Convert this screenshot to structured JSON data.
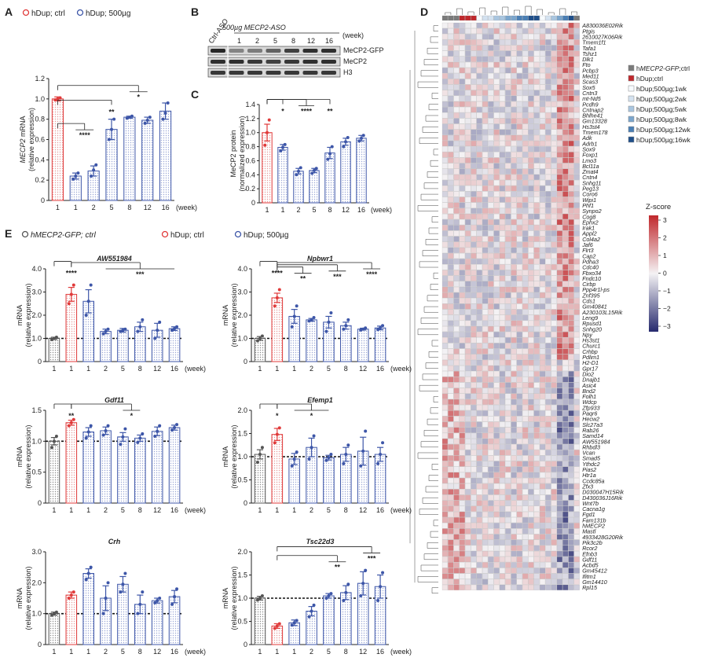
{
  "colors": {
    "ctrl": "#e03a3a",
    "aso": "#3d56a8",
    "gfp": "#555555",
    "heatLow": "#262a6e",
    "heatMid": "#f4f2f4",
    "heatHigh": "#c0282c"
  },
  "legendA": {
    "ctrl": "hDup; ctrl",
    "aso": "hDup; 500µg"
  },
  "legendE": {
    "gfp": "hMECP2-GFP; ctrl",
    "ctrl": "hDup; ctrl",
    "aso": "hDup; 500µg"
  },
  "panelLabels": {
    "A": "A",
    "B": "B",
    "C": "C",
    "D": "D",
    "E": "E"
  },
  "blot": {
    "lanes": [
      "Ctrl-ASO",
      "1",
      "2",
      "5",
      "8",
      "12",
      "16"
    ],
    "header": "500µg MECP2-ASO",
    "weekUnit": "(week)",
    "bands": [
      "MeCP2-GFP",
      "MeCP2",
      "H3"
    ]
  },
  "heatmap": {
    "legend": [
      "hMECP2-GFP;ctrl",
      "hDup;ctrl",
      "hDup;500µg;1wk",
      "hDup;500µg;2wk",
      "hDup;500µg;5wk",
      "hDup;500µg;8wk",
      "hDup;500µg;12wk",
      "hDup;500µg;16wk"
    ],
    "legendColors": [
      "#7a7a7a",
      "#c0282c",
      "#f7fbff",
      "#d4e2f0",
      "#a9c6e0",
      "#7ba6cd",
      "#4a7fb5",
      "#1f4f8a"
    ],
    "zscore": {
      "title": "Z-score",
      "ticks": [
        "3",
        "2",
        "1",
        "0",
        "−1",
        "−2",
        "−3"
      ]
    },
    "genes": [
      "A830036E02Rik",
      "Ptgis",
      "2610027K06Rik",
      "Tmem1f1",
      "Tafa1",
      "Tshz1",
      "Dlk1",
      "Fto",
      "Pcbp3",
      "Med11",
      "Scas3",
      "Sox5",
      "Cntn3",
      "mt-Nd5",
      "Pcdh9",
      "Cntnap2",
      "Bhlhe41",
      "Gm13328",
      "Hs3st4",
      "Tmem178",
      "Adk",
      "Adrb1",
      "Sox9",
      "Foxp1",
      "Lmo3",
      "Bcl11a",
      "Zmat4",
      "Cntn4",
      "Snhg11",
      "Peg13",
      "Coro6",
      "Wipi1",
      "Phf1",
      "Synpo2",
      "Cog8",
      "Ephx2",
      "Irak1",
      "Appl2",
      "Col4a2",
      "Jaf6",
      "Flrt3",
      "Cap2",
      "Pdha3",
      "Cdc40",
      "Fbxo34",
      "Fndc10",
      "Cirbp",
      "Ppp4r1l-ps",
      "Znf395",
      "Cds1",
      "Gm40841",
      "A230103L15Rik",
      "Leng9",
      "Rpusd1",
      "Snhg20",
      "Npy",
      "Hs3st1",
      "Churc1",
      "Crhbp",
      "Pdlim1",
      "H2-D1",
      "Gpr17",
      "Dio2",
      "Dnajb1",
      "Asic4",
      "Bnd2",
      "Folh1",
      "Wdcp",
      "Zfp933",
      "Paqr6",
      "Hecw2",
      "Slc27a3",
      "Rab26",
      "Samd14",
      "AW551984",
      "Rhbdl3",
      "Vcan",
      "Smad5",
      "Ythdc2",
      "Pias2",
      "Htr1a",
      "Ccdc85a",
      "Zfx3",
      "D030047H15Rik",
      "D430036J16Rik",
      "Wnt7b",
      "Cacna1g",
      "Fgd1",
      "Fam131b",
      "hMECP2",
      "Mastl",
      "4933428G20Rik",
      "Pik3c2b",
      "Rcor2",
      "Efnb3",
      "Gdf11",
      "Acbd5",
      "Gm45412",
      "Ifitm1",
      "Gm14410",
      "Rpl15"
    ]
  },
  "chart_data": [
    {
      "id": "A",
      "type": "bar",
      "ylabelGene": "MECP2",
      "ylabel": "mRNA (relative expression)",
      "ylim": [
        0,
        1.2
      ],
      "yticks": [
        0,
        0.2,
        0.4,
        0.6,
        0.8,
        1.0,
        1.2
      ],
      "categories": [
        "1",
        "1",
        "2",
        "5",
        "8",
        "12",
        "16"
      ],
      "xunit": "(week)",
      "groups": [
        "ctrl",
        "aso",
        "aso",
        "aso",
        "aso",
        "aso",
        "aso"
      ],
      "values": [
        1.0,
        0.24,
        0.29,
        0.7,
        0.82,
        0.79,
        0.88
      ],
      "errors": [
        0.02,
        0.03,
        0.05,
        0.1,
        0.01,
        0.03,
        0.08
      ],
      "points": [
        [
          0.99,
          1.0,
          1.01
        ],
        [
          0.21,
          0.24,
          0.27
        ],
        [
          0.24,
          0.3,
          0.35
        ],
        [
          0.6,
          0.7,
          0.8
        ],
        [
          0.81,
          0.82,
          0.83
        ],
        [
          0.76,
          0.79,
          0.82
        ],
        [
          0.8,
          0.86,
          0.96
        ]
      ],
      "sig": [
        "****",
        "**",
        "*"
      ]
    },
    {
      "id": "C",
      "type": "bar",
      "ylabel": "MeCP2 protein (normalized expression)",
      "ylim": [
        0,
        1.4
      ],
      "yticks": [
        0,
        0.2,
        0.4,
        0.6,
        0.8,
        1.0,
        1.2,
        1.4
      ],
      "categories": [
        "1",
        "1",
        "2",
        "5",
        "8",
        "12",
        "16"
      ],
      "xunit": "(week)",
      "groups": [
        "ctrl",
        "aso",
        "aso",
        "aso",
        "aso",
        "aso",
        "aso"
      ],
      "values": [
        1.0,
        0.79,
        0.45,
        0.46,
        0.71,
        0.87,
        0.92
      ],
      "errors": [
        0.12,
        0.04,
        0.04,
        0.03,
        0.08,
        0.05,
        0.04
      ],
      "points": [
        [
          0.82,
          1.0,
          1.18
        ],
        [
          0.74,
          0.79,
          0.83
        ],
        [
          0.4,
          0.45,
          0.5
        ],
        [
          0.42,
          0.46,
          0.49
        ],
        [
          0.62,
          0.7,
          0.8
        ],
        [
          0.8,
          0.87,
          0.93
        ],
        [
          0.88,
          0.92,
          0.96
        ]
      ],
      "sig": [
        "*",
        "****",
        "**"
      ]
    },
    {
      "id": "E1",
      "type": "bar",
      "title": "AW551984",
      "ylabel": "mRNA (relative expression)",
      "ylim": [
        0,
        4
      ],
      "yticks": [
        "0",
        "1.0",
        "2.0",
        "3.0",
        "4.0"
      ],
      "ytickvals": [
        0,
        1,
        2,
        3,
        4
      ],
      "categories": [
        "1",
        "1",
        "1",
        "2",
        "5",
        "8",
        "12",
        "16"
      ],
      "xunit": "(week)",
      "groups": [
        "gfp",
        "ctrl",
        "aso",
        "aso",
        "aso",
        "aso",
        "aso",
        "aso"
      ],
      "values": [
        1.0,
        2.9,
        2.6,
        1.3,
        1.35,
        1.5,
        1.35,
        1.42
      ],
      "errors": [
        0.05,
        0.3,
        0.5,
        0.1,
        0.08,
        0.2,
        0.3,
        0.08
      ],
      "points": [
        [
          0.95,
          1.0,
          1.05
        ],
        [
          2.5,
          2.9,
          3.3
        ],
        [
          2.0,
          2.6,
          3.3
        ],
        [
          1.2,
          1.3,
          1.4
        ],
        [
          1.3,
          1.35,
          1.4
        ],
        [
          1.3,
          1.5,
          1.8
        ],
        [
          1.0,
          1.35,
          1.7
        ],
        [
          1.35,
          1.42,
          1.5
        ]
      ],
      "baseline": 1,
      "sig": [
        "****",
        "***"
      ]
    },
    {
      "id": "E2",
      "type": "bar",
      "title": "Npbwr1",
      "ylabel": "mRNA (relative expression)",
      "ylim": [
        0,
        4
      ],
      "yticks": [
        "0",
        "1.0",
        "2.0",
        "3.0",
        "4.0"
      ],
      "ytickvals": [
        0,
        1,
        2,
        3,
        4
      ],
      "categories": [
        "1",
        "1",
        "1",
        "2",
        "5",
        "8",
        "12",
        "16"
      ],
      "xunit": "(week)",
      "groups": [
        "gfp",
        "ctrl",
        "aso",
        "aso",
        "aso",
        "aso",
        "aso",
        "aso"
      ],
      "values": [
        1.0,
        2.75,
        1.95,
        1.8,
        1.7,
        1.55,
        1.4,
        1.45
      ],
      "errors": [
        0.08,
        0.2,
        0.3,
        0.06,
        0.25,
        0.15,
        0.04,
        0.08
      ],
      "points": [
        [
          0.9,
          1.0,
          1.1
        ],
        [
          2.4,
          2.75,
          3.1
        ],
        [
          1.5,
          1.95,
          2.4
        ],
        [
          1.75,
          1.8,
          1.9
        ],
        [
          1.3,
          1.7,
          2.1
        ],
        [
          1.4,
          1.55,
          1.8
        ],
        [
          1.36,
          1.4,
          1.45
        ],
        [
          1.38,
          1.45,
          1.55
        ]
      ],
      "baseline": 1,
      "sig": [
        "****",
        "**",
        "***",
        "****"
      ]
    },
    {
      "id": "E3",
      "type": "bar",
      "title": "Gdf11",
      "ylabel": "mRNA (relative expression)",
      "ylim": [
        0,
        1.5
      ],
      "yticks": [
        "0",
        "0.5",
        "1.0",
        "1.5"
      ],
      "ytickvals": [
        0,
        0.5,
        1.0,
        1.5
      ],
      "categories": [
        "1",
        "1",
        "1",
        "2",
        "5",
        "8",
        "12",
        "16"
      ],
      "xunit": "(week)",
      "groups": [
        "gfp",
        "ctrl",
        "aso",
        "aso",
        "aso",
        "aso",
        "aso",
        "aso"
      ],
      "values": [
        1.0,
        1.3,
        1.15,
        1.17,
        1.07,
        1.05,
        1.16,
        1.22
      ],
      "errors": [
        0.06,
        0.04,
        0.07,
        0.06,
        0.07,
        0.05,
        0.07,
        0.04
      ],
      "points": [
        [
          0.9,
          1.0,
          1.08
        ],
        [
          1.25,
          1.3,
          1.35
        ],
        [
          1.05,
          1.15,
          1.25
        ],
        [
          1.1,
          1.17,
          1.25
        ],
        [
          0.95,
          1.07,
          1.2
        ],
        [
          0.98,
          1.05,
          1.12
        ],
        [
          1.08,
          1.16,
          1.25
        ],
        [
          1.18,
          1.22,
          1.27
        ]
      ],
      "baseline": 1,
      "sig": [
        "**",
        "*",
        "*",
        "*"
      ]
    },
    {
      "id": "E4",
      "type": "bar",
      "title": "Efemp1",
      "ylabel": "mRNA (relative expression)",
      "ylim": [
        0,
        2.0
      ],
      "yticks": [
        "0",
        "0.5",
        "1.0",
        "1.5",
        "2.0"
      ],
      "ytickvals": [
        0,
        0.5,
        1,
        1.5,
        2
      ],
      "categories": [
        "1",
        "1",
        "1",
        "2",
        "5",
        "8",
        "12",
        "16"
      ],
      "xunit": "(week)",
      "groups": [
        "gfp",
        "ctrl",
        "aso",
        "aso",
        "aso",
        "aso",
        "aso",
        "aso"
      ],
      "values": [
        1.05,
        1.48,
        0.95,
        1.2,
        0.98,
        1.05,
        1.12,
        1.05
      ],
      "errors": [
        0.1,
        0.13,
        0.12,
        0.2,
        0.05,
        0.15,
        0.3,
        0.15
      ],
      "points": [
        [
          0.88,
          1.05,
          1.2
        ],
        [
          1.3,
          1.48,
          1.62
        ],
        [
          0.8,
          0.95,
          1.1
        ],
        [
          0.95,
          1.2,
          1.45
        ],
        [
          0.92,
          0.98,
          1.05
        ],
        [
          0.85,
          1.05,
          1.25
        ],
        [
          0.8,
          1.12,
          1.55
        ],
        [
          0.85,
          1.05,
          1.3
        ]
      ],
      "baseline": 1,
      "sig": [
        "*",
        "*",
        "*",
        "*"
      ]
    },
    {
      "id": "E5",
      "type": "bar",
      "title": "Crh",
      "ylabel": "mRNA (relative expression)",
      "ylim": [
        0,
        3
      ],
      "yticks": [
        "0",
        "1.0",
        "2.0",
        "3.0"
      ],
      "ytickvals": [
        0,
        1,
        2,
        3
      ],
      "categories": [
        "1",
        "1",
        "1",
        "2",
        "5",
        "8",
        "12",
        "16"
      ],
      "xunit": "(week)",
      "groups": [
        "gfp",
        "ctrl",
        "aso",
        "aso",
        "aso",
        "aso",
        "aso",
        "aso"
      ],
      "values": [
        1.0,
        1.6,
        2.3,
        1.5,
        1.95,
        1.3,
        1.42,
        1.55
      ],
      "errors": [
        0.05,
        0.1,
        0.15,
        0.4,
        0.25,
        0.3,
        0.08,
        0.2
      ],
      "points": [
        [
          0.95,
          1.0,
          1.05
        ],
        [
          1.5,
          1.6,
          1.7
        ],
        [
          2.1,
          2.3,
          2.5
        ],
        [
          1.0,
          1.5,
          2.0
        ],
        [
          1.7,
          1.95,
          2.3
        ],
        [
          1.0,
          1.3,
          1.7
        ],
        [
          1.35,
          1.42,
          1.5
        ],
        [
          1.3,
          1.55,
          1.8
        ]
      ],
      "baseline": 1,
      "sig": []
    },
    {
      "id": "E6",
      "type": "bar",
      "title": "Tsc22d3",
      "ylabel": "mRNA (relative expression)",
      "ylim": [
        0,
        2.0
      ],
      "yticks": [
        "0",
        "0.5",
        "1.0",
        "1.5",
        "2.0"
      ],
      "ytickvals": [
        0,
        0.5,
        1,
        1.5,
        2
      ],
      "categories": [
        "1",
        "1",
        "1",
        "2",
        "5",
        "8",
        "12",
        "16"
      ],
      "xunit": "(week)",
      "groups": [
        "gfp",
        "ctrl",
        "aso",
        "aso",
        "aso",
        "aso",
        "aso",
        "aso"
      ],
      "values": [
        1.0,
        0.4,
        0.47,
        0.72,
        1.05,
        1.12,
        1.32,
        1.25
      ],
      "errors": [
        0.04,
        0.05,
        0.06,
        0.1,
        0.05,
        0.15,
        0.25,
        0.25
      ],
      "points": [
        [
          0.96,
          1.0,
          1.05
        ],
        [
          0.35,
          0.4,
          0.45
        ],
        [
          0.42,
          0.47,
          0.52
        ],
        [
          0.6,
          0.72,
          0.85
        ],
        [
          1.0,
          1.05,
          1.1
        ],
        [
          0.95,
          1.12,
          1.3
        ],
        [
          1.05,
          1.32,
          1.6
        ],
        [
          0.95,
          1.25,
          1.55
        ]
      ],
      "baseline": 1,
      "sig": [
        "**",
        "***"
      ]
    }
  ]
}
